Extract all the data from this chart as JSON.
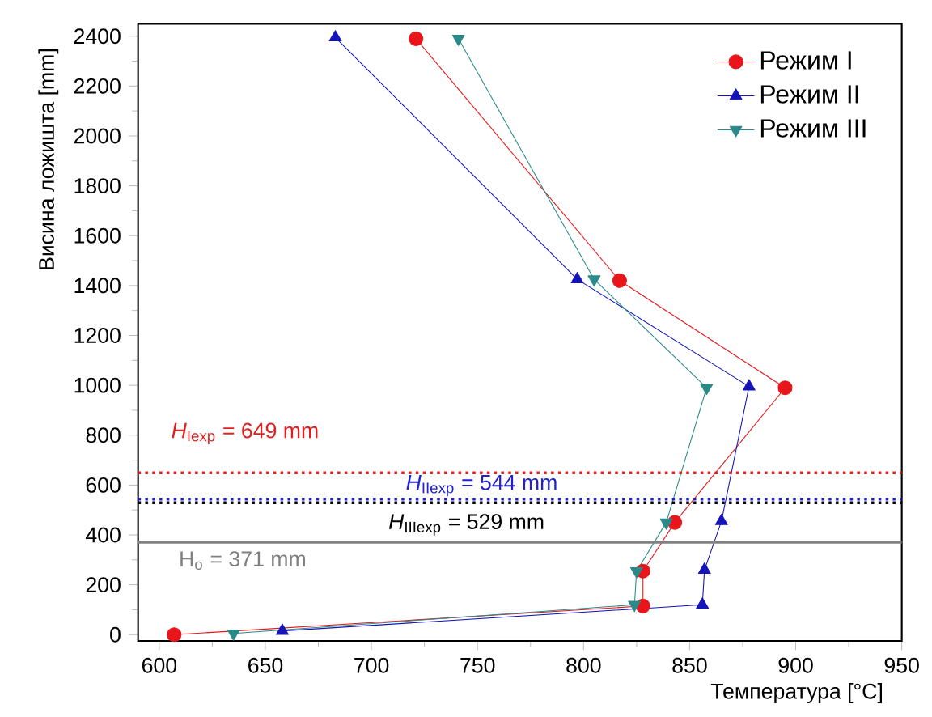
{
  "chart_data": {
    "type": "line",
    "xlabel": "Температура [°C]",
    "ylabel": "Висина ложишта [mm]",
    "xlim": [
      590,
      950
    ],
    "ylim": [
      -25,
      2450
    ],
    "xticks": [
      600,
      650,
      700,
      750,
      800,
      850,
      900,
      950
    ],
    "yticks": [
      0,
      200,
      400,
      600,
      800,
      1000,
      1200,
      1400,
      1600,
      1800,
      2000,
      2200,
      2400
    ],
    "grid": false,
    "legend": "top right",
    "line_style": "solid",
    "series": [
      {
        "name": "Режим I",
        "color": "#e8161b",
        "marker": "circle",
        "x": [
          607,
          828,
          828,
          843,
          895,
          817,
          721
        ],
        "values": [
          0,
          115,
          255,
          450,
          990,
          1420,
          2390
        ]
      },
      {
        "name": "Режим II",
        "color": "#1414b8",
        "marker": "triangle",
        "x": [
          658,
          856,
          857,
          865,
          878,
          797,
          683
        ],
        "values": [
          15,
          120,
          260,
          455,
          995,
          1425,
          2395
        ]
      },
      {
        "name": "Режим III",
        "color": "#2a8a8a",
        "marker": "triangle-down",
        "x": [
          635,
          824,
          825,
          839,
          858,
          805,
          741
        ],
        "values": [
          5,
          120,
          255,
          450,
          990,
          1425,
          2390
        ]
      }
    ],
    "ref_lines": [
      {
        "axis": "y",
        "value": 649,
        "label": "*H*$_{Iexp}$ = 649 mm",
        "color": "#e02020",
        "line_style": "dotted"
      },
      {
        "axis": "y",
        "value": 544,
        "label": "*H*$_{IIexp}$ = 544 mm",
        "color": "#2020d0",
        "line_style": "dotted"
      },
      {
        "axis": "y",
        "value": 529,
        "label": "*H*$_{IIIexp}$ = 529 mm",
        "color": "#000000",
        "line_style": "dotted"
      },
      {
        "axis": "y",
        "value": 371,
        "label": "H$_{o}$ = 371 mm",
        "color": "#808080",
        "line_style": "solid"
      }
    ]
  }
}
